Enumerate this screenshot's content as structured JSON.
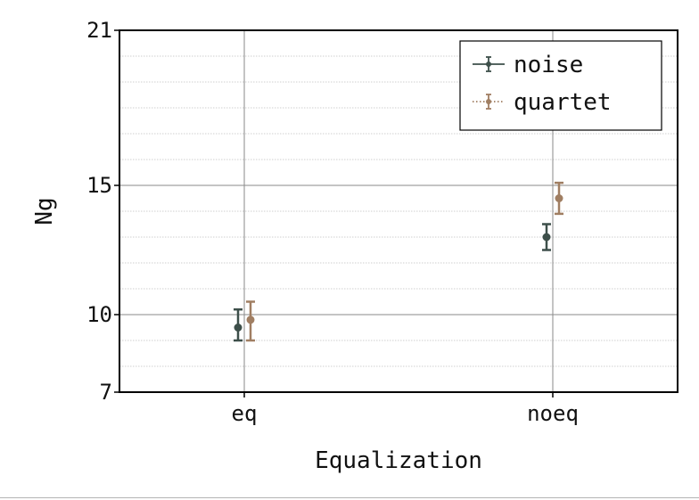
{
  "chart_data": {
    "type": "scatter",
    "subtype": "errorbar",
    "xlabel": "Equalization",
    "ylabel": "Ng",
    "categories": [
      "eq",
      "noeq"
    ],
    "ylim": [
      7,
      21
    ],
    "yticks": [
      7,
      10,
      15,
      21
    ],
    "y_minor_step": 1,
    "grid": true,
    "legend_position": "top-right",
    "series": [
      {
        "name": "noise",
        "color": "#3d4f4a",
        "line_style": "solid",
        "points": [
          {
            "x": "eq",
            "y": 9.5,
            "err_low": 9.0,
            "err_high": 10.2
          },
          {
            "x": "noeq",
            "y": 13.0,
            "err_low": 12.5,
            "err_high": 13.5
          }
        ]
      },
      {
        "name": "quartet",
        "color": "#a07e62",
        "line_style": "dotted",
        "points": [
          {
            "x": "eq",
            "y": 9.8,
            "err_low": 9.0,
            "err_high": 10.5
          },
          {
            "x": "noeq",
            "y": 14.5,
            "err_low": 13.9,
            "err_high": 15.1
          }
        ]
      }
    ]
  }
}
